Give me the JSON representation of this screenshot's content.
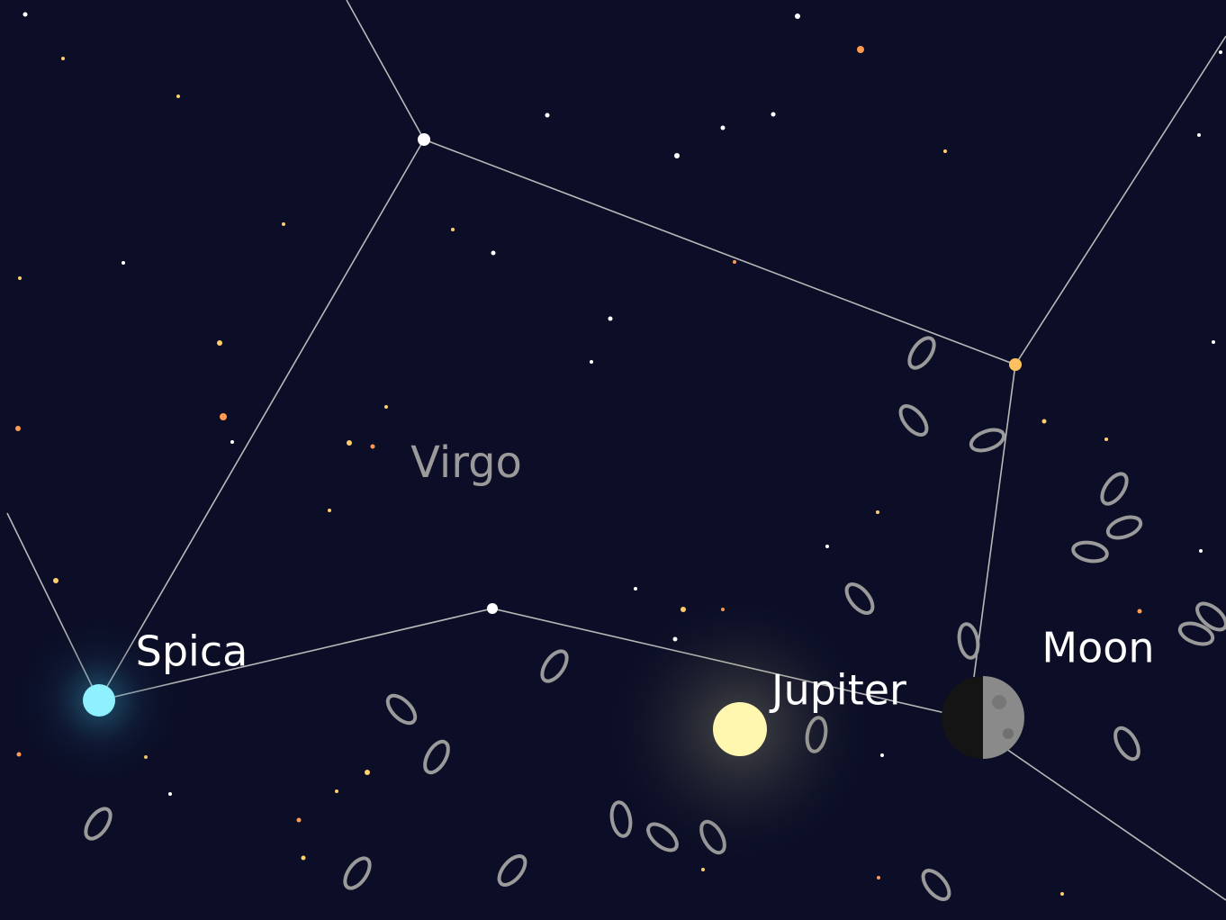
{
  "constellation": {
    "name": "Virgo"
  },
  "objects": [
    {
      "name": "Spica"
    },
    {
      "name": "Jupiter"
    },
    {
      "name": "Moon"
    }
  ]
}
